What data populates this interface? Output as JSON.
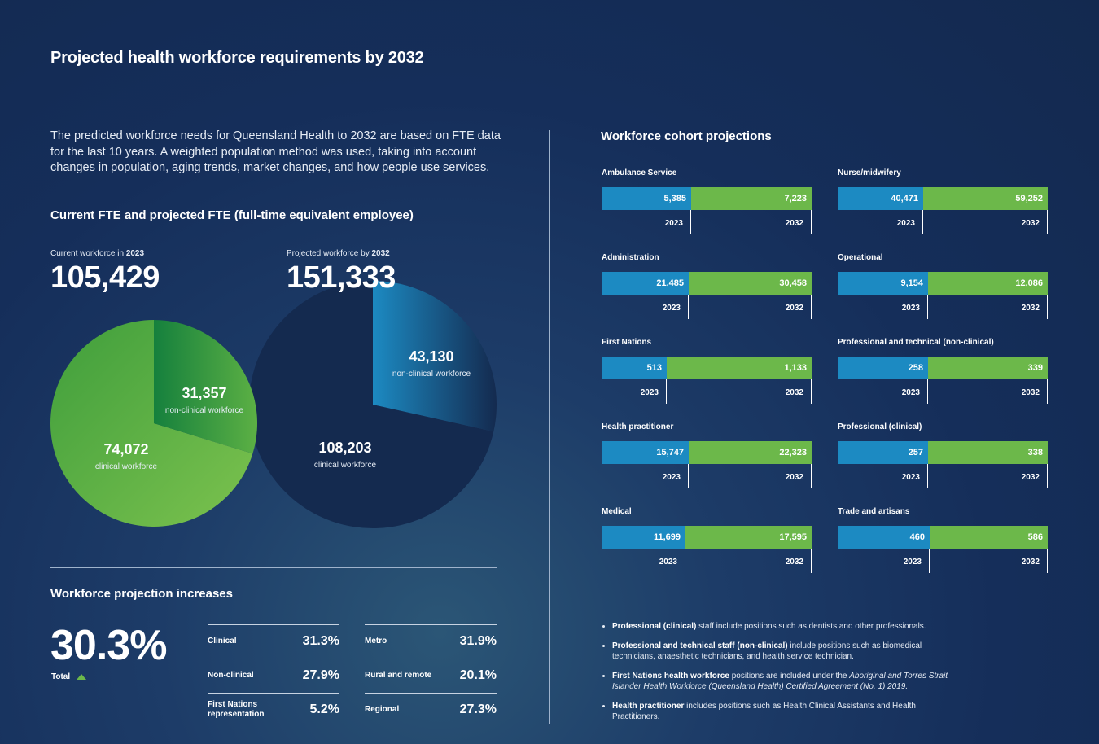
{
  "title": "Projected health workforce requirements by 2032",
  "intro": "The predicted workforce needs for Queensland Health to 2032 are based on FTE data for the last 10 years. A weighted population method was used, taking into account changes in population, aging trends, market changes, and how people use services.",
  "fte_heading": "Current FTE and projected FTE (full-time equivalent employee)",
  "current": {
    "label_prefix": "Current workforce in ",
    "label_year": "2023",
    "total": "105,429"
  },
  "projected": {
    "label_prefix": "Projected workforce by ",
    "label_year": "2032",
    "total": "151,333"
  },
  "colors": {
    "current_bar": "#1c8ac2",
    "projected_bar": "#6cb84a",
    "clinical_green": "#5cb044",
    "dark_pie": "#142a4f"
  },
  "cohort_heading": "Workforce cohort projections",
  "increases": {
    "heading": "Workforce projection increases",
    "total_value": "30.3%",
    "total_label": "Total",
    "left": [
      {
        "label": "Clinical",
        "value": "31.3%"
      },
      {
        "label": "Non-clinical",
        "value": "27.9%"
      },
      {
        "label": "First Nations representation",
        "value": "5.2%"
      }
    ],
    "right": [
      {
        "label": "Metro",
        "value": "31.9%"
      },
      {
        "label": "Rural and remote",
        "value": "20.1%"
      },
      {
        "label": "Regional",
        "value": "27.3%"
      }
    ]
  },
  "notes": [
    {
      "bold": "Professional (clinical)",
      "text": " staff include positions such as dentists and other professionals."
    },
    {
      "bold": "Professional and technical staff (non-clinical)",
      "text": " include positions such as biomedical technicians, anaesthetic technicians, and health service technician."
    },
    {
      "bold": "First Nations health workforce",
      "text": " positions are included under the ",
      "italic": "Aboriginal and Torres Strait Islander Health Workforce (Queensland Health) Certified Agreement (No. 1) 2019."
    },
    {
      "bold": "Health practitioner",
      "text": " includes positions such as Health Clinical Assistants and Health Practitioners."
    }
  ],
  "chart_data": [
    {
      "type": "pie",
      "labels": [
        "clinical workforce",
        "non-clinical workforce"
      ],
      "values": [
        74072,
        31357
      ],
      "value_labels": [
        "74,072",
        "31,357"
      ]
    },
    {
      "type": "pie",
      "labels": [
        "clinical workforce",
        "non-clinical workforce"
      ],
      "values": [
        108203,
        43130
      ],
      "value_labels": [
        "108,203",
        "43,130"
      ]
    },
    {
      "type": "bar",
      "categories": [
        "Ambulance Service",
        "Nurse/midwifery",
        "Administration",
        "Operational",
        "First Nations",
        "Professional and technical (non-clinical)",
        "Health practitioner",
        "Professional (clinical)",
        "Medical",
        "Trade and artisans"
      ],
      "series": [
        {
          "name": "2023",
          "values": [
            5385,
            40471,
            21485,
            9154,
            513,
            258,
            15747,
            257,
            11699,
            460
          ],
          "labels": [
            "5,385",
            "40,471",
            "21,485",
            "9,154",
            "513",
            "258",
            "15,747",
            "257",
            "11,699",
            "460"
          ]
        },
        {
          "name": "2032",
          "values": [
            7223,
            59252,
            30458,
            12086,
            1133,
            339,
            22323,
            338,
            17595,
            586
          ],
          "labels": [
            "7,223",
            "59,252",
            "30,458",
            "12,086",
            "1,133",
            "339",
            "22,323",
            "338",
            "17,595",
            "586"
          ]
        }
      ]
    }
  ]
}
